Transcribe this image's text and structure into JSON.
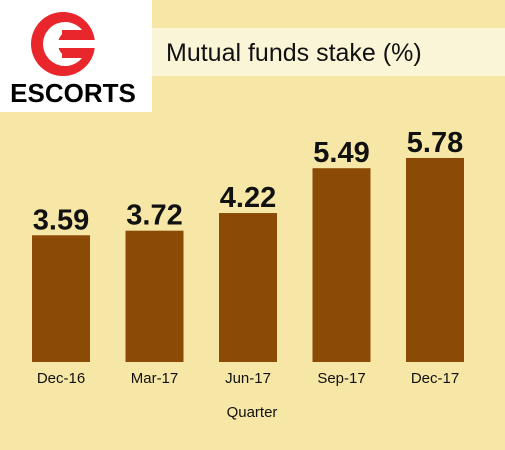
{
  "logo": {
    "text": "ESCORTS",
    "brand_color": "#e8262b"
  },
  "colors": {
    "background": "#f7e7a6",
    "band": "#fbf5d8",
    "bar": "#8b4a06",
    "text": "#111111"
  },
  "chart_data": {
    "type": "bar",
    "title": "Mutual funds stake (%)",
    "xlabel": "Quarter",
    "ylabel": "",
    "categories": [
      "Dec-16",
      "Mar-17",
      "Jun-17",
      "Sep-17",
      "Dec-17"
    ],
    "values": [
      3.59,
      3.72,
      4.22,
      5.49,
      5.78
    ],
    "value_labels": [
      "3.59",
      "3.72",
      "4.22",
      "5.49",
      "5.78"
    ],
    "ylim": [
      0,
      6.5
    ],
    "grid": false,
    "legend": "none"
  }
}
